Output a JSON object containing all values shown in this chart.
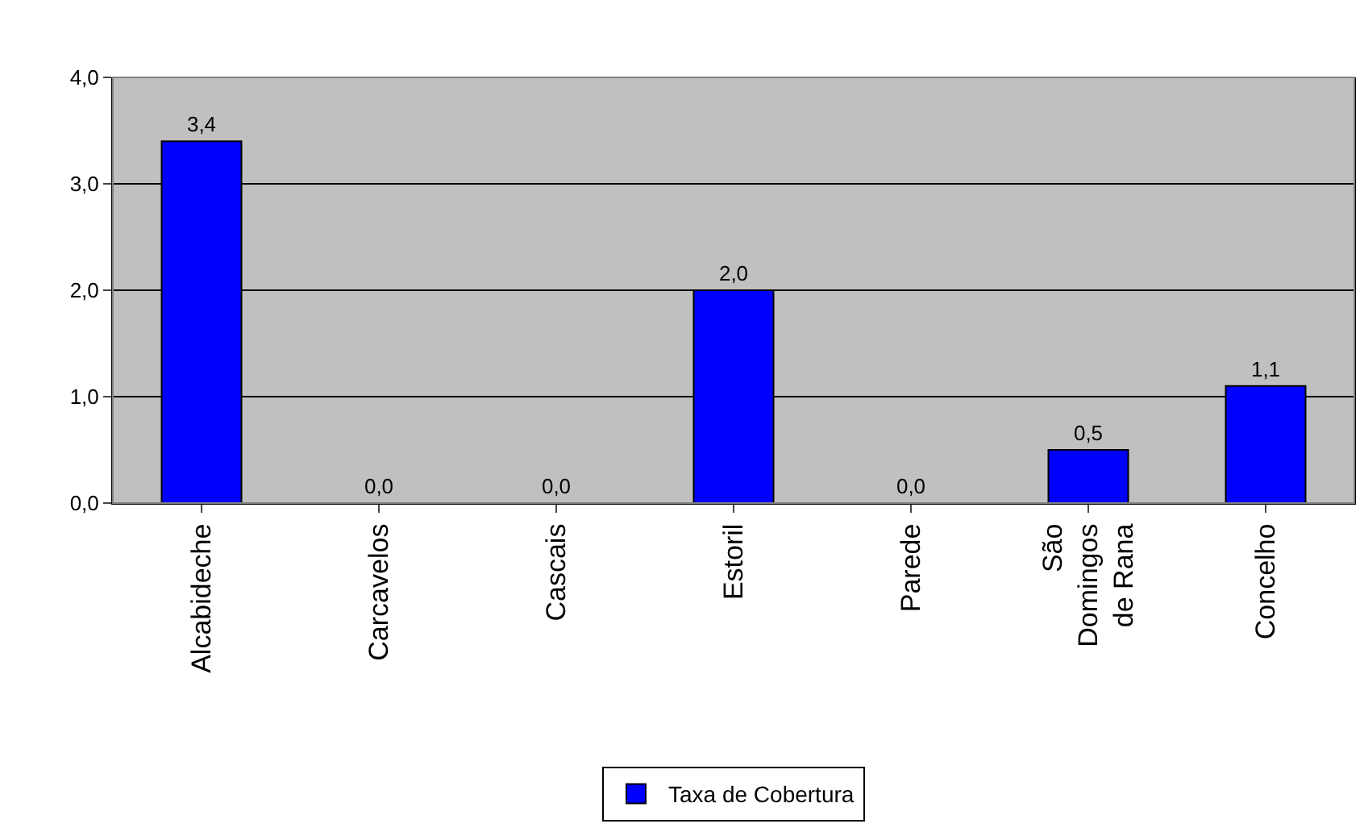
{
  "chart_data": {
    "type": "bar",
    "categories": [
      "Alcabideche",
      "Carcavelos",
      "Cascais",
      "Estoril",
      "Parede",
      "São Domingos de Rana",
      "Concelho"
    ],
    "series": [
      {
        "name": "Taxa de Cobertura",
        "color": "#0000ff",
        "values": [
          3.4,
          0.0,
          0.0,
          2.0,
          0.0,
          0.5,
          1.1
        ],
        "value_labels": [
          "3,4",
          "0,0",
          "0,0",
          "2,0",
          "0,0",
          "0,5",
          "1,1"
        ]
      }
    ],
    "ylim": [
      0,
      4
    ],
    "yticks": [
      {
        "value": 0,
        "label": "0,0"
      },
      {
        "value": 1,
        "label": "1,0"
      },
      {
        "value": 2,
        "label": "2,0"
      },
      {
        "value": 3,
        "label": "3,0"
      },
      {
        "value": 4,
        "label": "4,0"
      }
    ],
    "grid": "y",
    "legend": "bottom"
  }
}
